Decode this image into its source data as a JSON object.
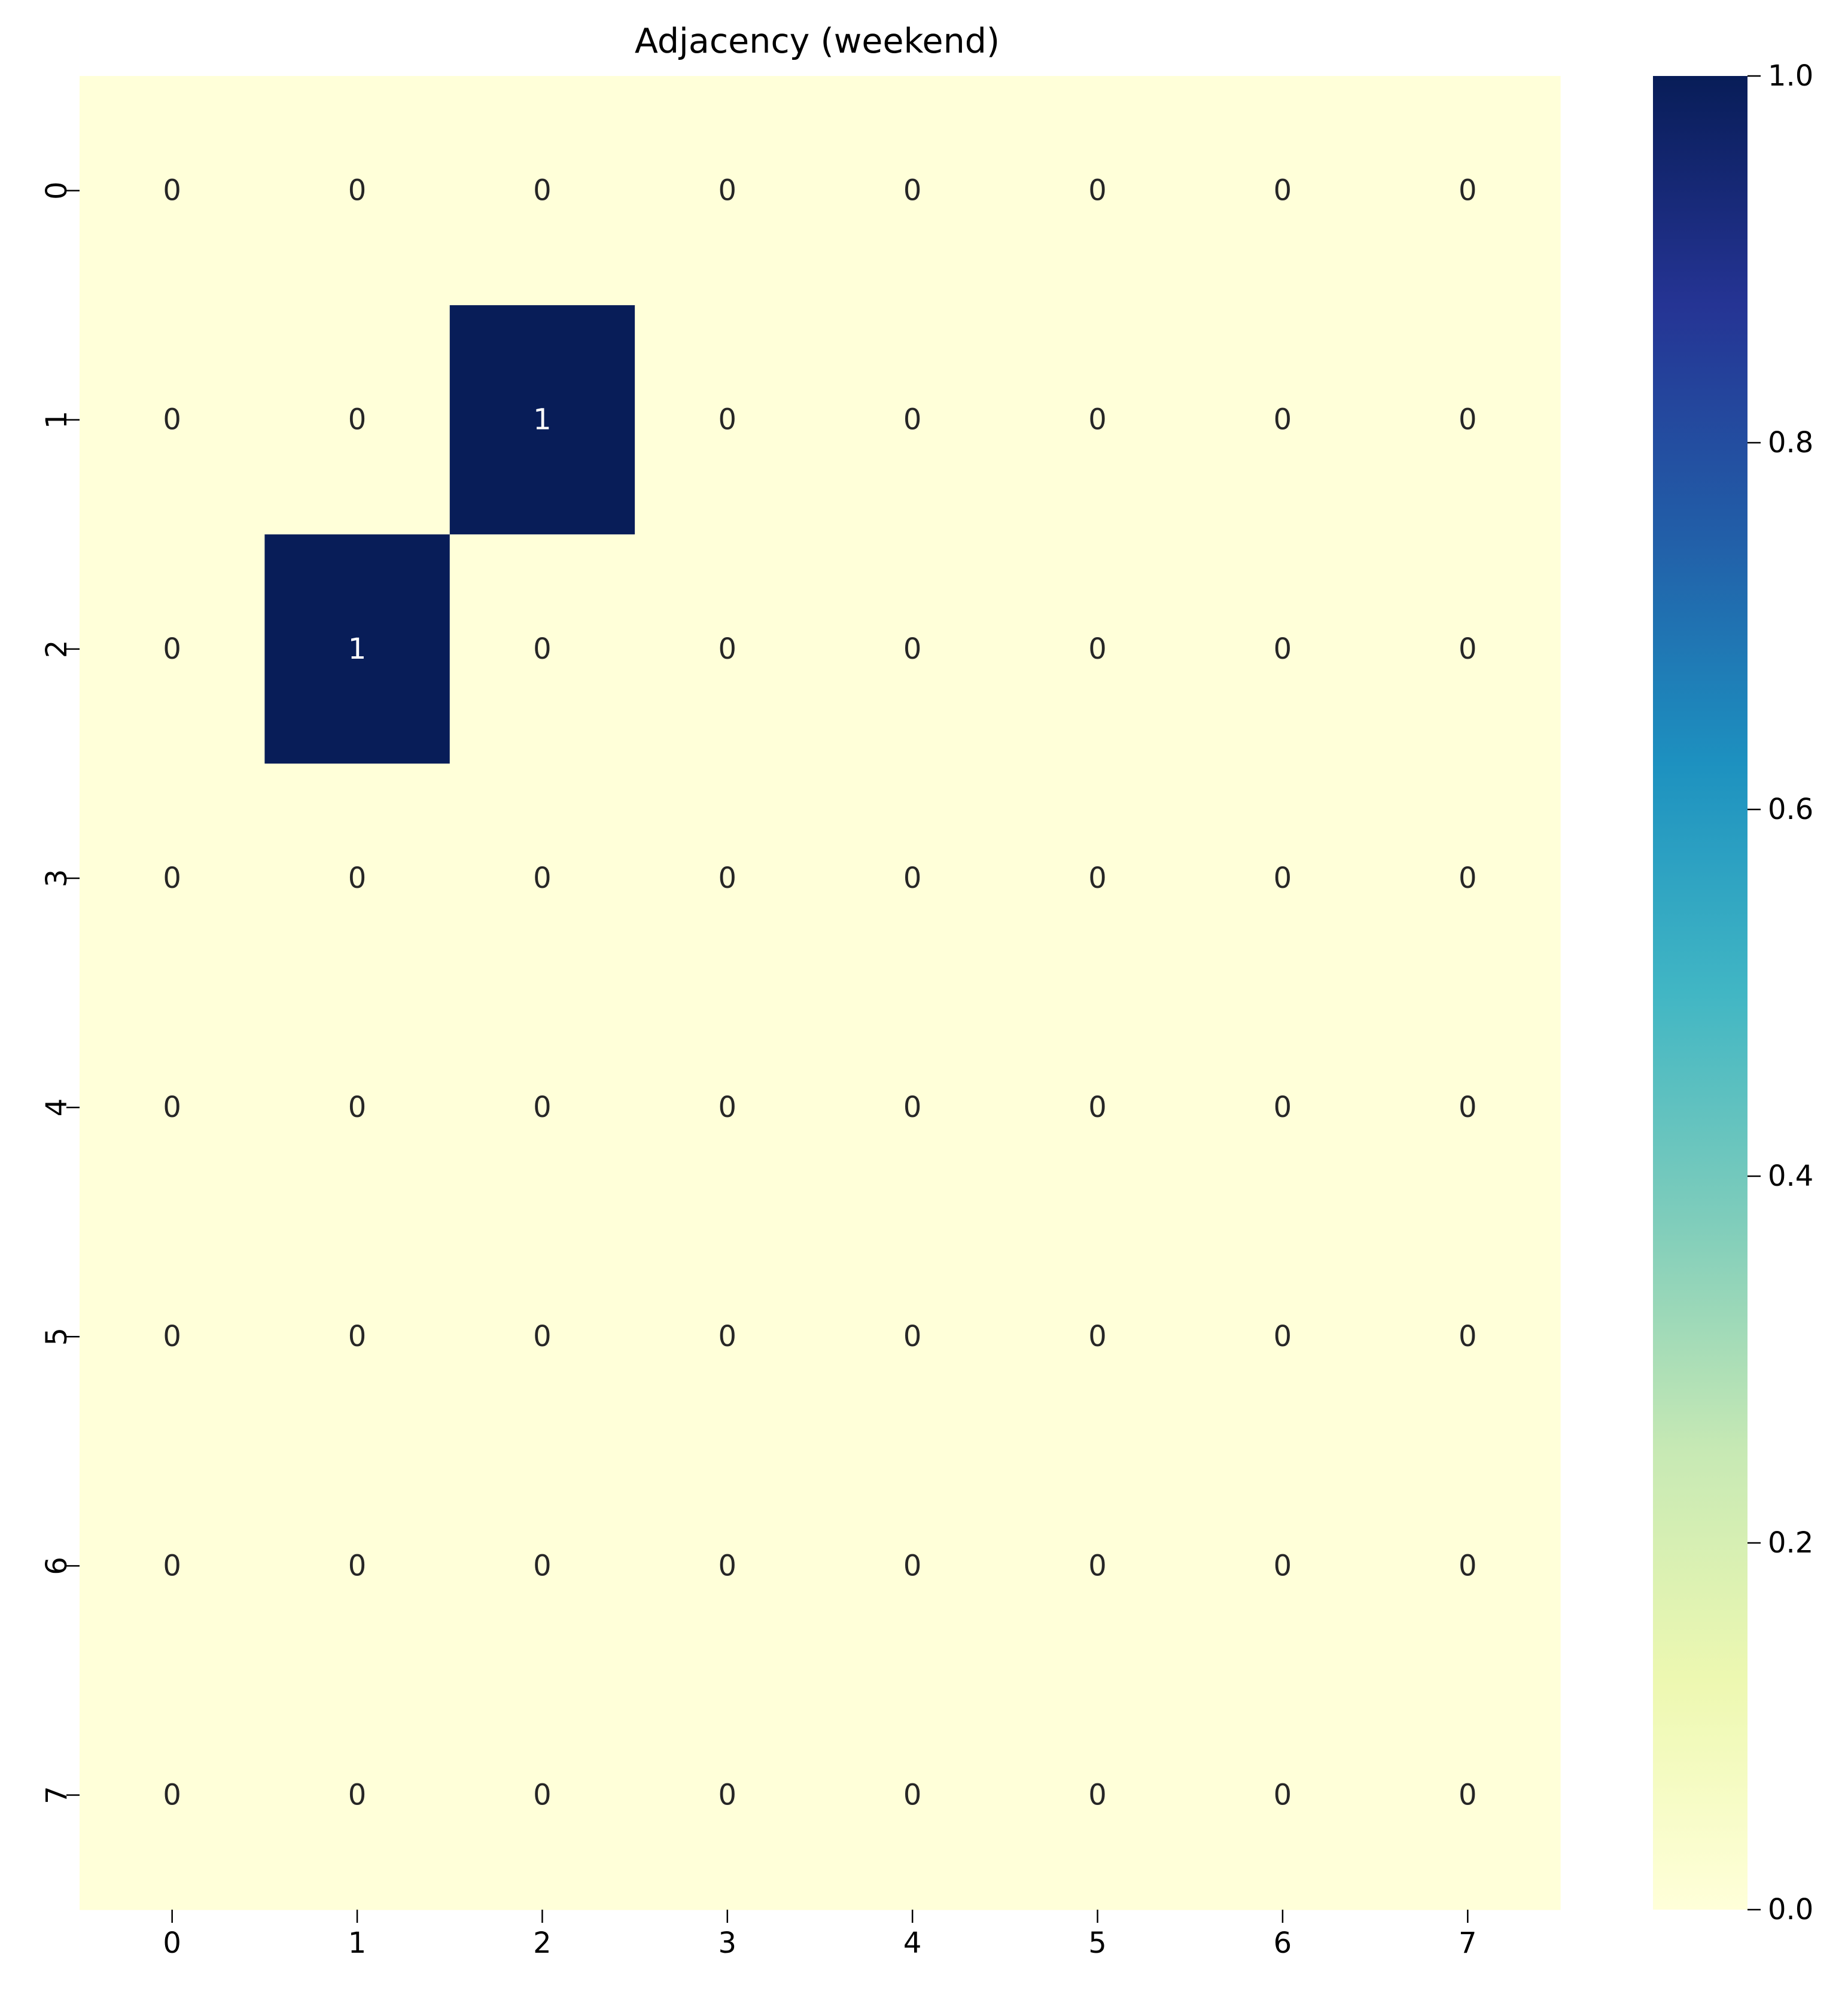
{
  "chart_data": {
    "type": "heatmap",
    "title": "Adjacency (weekend)",
    "xlabel": "",
    "ylabel": "",
    "x_categories": [
      "0",
      "1",
      "2",
      "3",
      "4",
      "5",
      "6",
      "7"
    ],
    "y_categories": [
      "0",
      "1",
      "2",
      "3",
      "4",
      "5",
      "6",
      "7"
    ],
    "values": [
      [
        0,
        0,
        0,
        0,
        0,
        0,
        0,
        0
      ],
      [
        0,
        0,
        1,
        0,
        0,
        0,
        0,
        0
      ],
      [
        0,
        1,
        0,
        0,
        0,
        0,
        0,
        0
      ],
      [
        0,
        0,
        0,
        0,
        0,
        0,
        0,
        0
      ],
      [
        0,
        0,
        0,
        0,
        0,
        0,
        0,
        0
      ],
      [
        0,
        0,
        0,
        0,
        0,
        0,
        0,
        0
      ],
      [
        0,
        0,
        0,
        0,
        0,
        0,
        0,
        0
      ],
      [
        0,
        0,
        0,
        0,
        0,
        0,
        0,
        0
      ]
    ],
    "annotations": [
      [
        "0",
        "0",
        "0",
        "0",
        "0",
        "0",
        "0",
        "0"
      ],
      [
        "0",
        "0",
        "1",
        "0",
        "0",
        "0",
        "0",
        "0"
      ],
      [
        "0",
        "1",
        "0",
        "0",
        "0",
        "0",
        "0",
        "0"
      ],
      [
        "0",
        "0",
        "0",
        "0",
        "0",
        "0",
        "0",
        "0"
      ],
      [
        "0",
        "0",
        "0",
        "0",
        "0",
        "0",
        "0",
        "0"
      ],
      [
        "0",
        "0",
        "0",
        "0",
        "0",
        "0",
        "0",
        "0"
      ],
      [
        "0",
        "0",
        "0",
        "0",
        "0",
        "0",
        "0",
        "0"
      ],
      [
        "0",
        "0",
        "0",
        "0",
        "0",
        "0",
        "0",
        "0"
      ]
    ],
    "vmin": 0,
    "vmax": 1,
    "colormap": "YlGnBu",
    "colormap_stops": [
      "#ffffd9",
      "#edf8b1",
      "#c7e9b4",
      "#7fcdbb",
      "#41b6c4",
      "#1d91c0",
      "#225ea8",
      "#253494",
      "#081d58"
    ],
    "colorbar": {
      "ticks": [
        0.0,
        0.2,
        0.4,
        0.6,
        0.8,
        1.0
      ],
      "tick_labels": [
        "0.0",
        "0.2",
        "0.4",
        "0.6",
        "0.8",
        "1.0"
      ],
      "position": "right"
    },
    "grid": false,
    "annotation_colors": {
      "dark_text": "#262626",
      "light_text": "#ffffff"
    }
  }
}
